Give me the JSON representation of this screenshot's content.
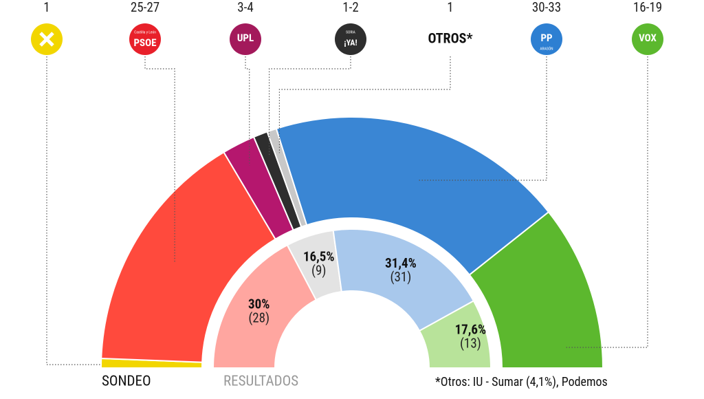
{
  "outer_ring": {
    "name": "SONDEO",
    "segments": [
      {
        "seats_label": "1",
        "seats": 1,
        "color": "#f2d600",
        "logo_color": "#f2d600"
      },
      {
        "seats_label": "25-27",
        "seats": 26,
        "color": "#ff4a3d",
        "logo_color": "#e8202a",
        "logo": "PSOE",
        "logo_small": "Castilla y León"
      },
      {
        "seats_label": "3-4",
        "seats": 3.5,
        "color": "#b5176e",
        "logo_color": "#a3195b",
        "logo": "UPL"
      },
      {
        "seats_label": "1-2",
        "seats": 1.5,
        "color": "#2e2e2e",
        "logo_color": "#2e2e2e",
        "logo": "¡YA!",
        "logo_small": "SORIA"
      },
      {
        "seats_label": "1",
        "seats": 1,
        "color": "#c8c8c8",
        "logo": "OTROS*"
      },
      {
        "seats_label": "30-33",
        "seats": 31.5,
        "color": "#3a86d4",
        "logo_color": "#2d7fd2",
        "logo": "PP",
        "logo_small": "ARAGÓN"
      },
      {
        "seats_label": "16-19",
        "seats": 17.5,
        "color": "#5cb82e",
        "logo_color": "#5cb82e",
        "logo": "VOX"
      }
    ]
  },
  "inner_ring": {
    "name": "RESULTADOS",
    "segments": [
      {
        "percent": 30,
        "percent_label": "30%",
        "seats": 28,
        "seats_label": "(28)",
        "color": "#ffa6a0"
      },
      {
        "percent": 16.5,
        "percent_label": "16,5%",
        "seats": 9,
        "seats_label": "(9)",
        "color": "#e3e3e3"
      },
      {
        "percent": 31.4,
        "percent_label": "31,4%",
        "seats": 31,
        "seats_label": "(31)",
        "color": "#a8c8ec"
      },
      {
        "percent": 17.6,
        "percent_label": "17,6%",
        "seats": 13,
        "seats_label": "(13)",
        "color": "#b8e39a"
      }
    ]
  },
  "footnote": "*Otros: IU - Sumar (4,1%), Podemos"
}
